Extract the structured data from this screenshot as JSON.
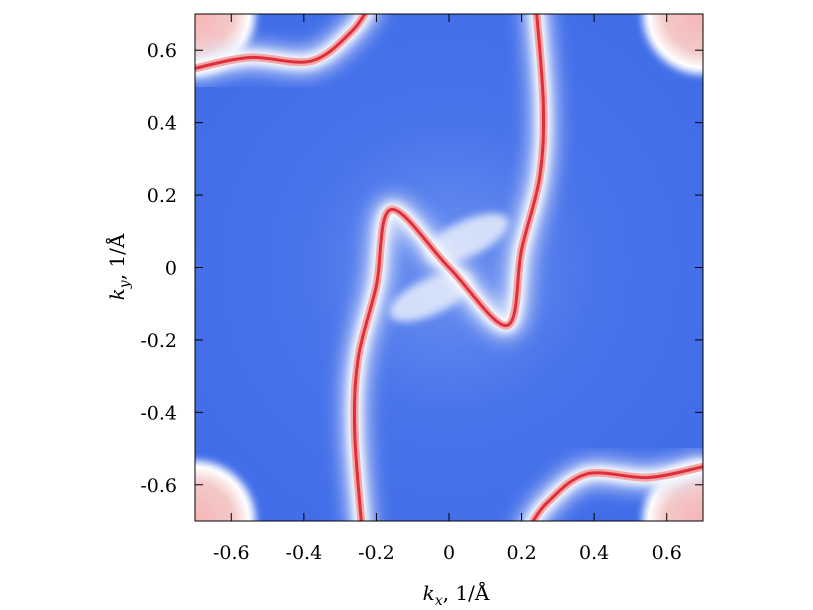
{
  "chart_data": {
    "type": "heatmap",
    "title": "",
    "xlabel": {
      "var": "k",
      "sub": "x",
      "unit": ", 1/Å"
    },
    "ylabel": {
      "var": "k",
      "sub": "y",
      "unit": ", 1/Å"
    },
    "xlim": [
      -0.7,
      0.7
    ],
    "ylim": [
      -0.7,
      0.7
    ],
    "xticks": [
      -0.6,
      -0.4,
      -0.2,
      0,
      0.2,
      0.4,
      0.6
    ],
    "yticks": [
      -0.6,
      -0.4,
      -0.2,
      0,
      0.2,
      0.4,
      0.6
    ],
    "xtick_labels": [
      "-0.6",
      "-0.4",
      "-0.2",
      "0",
      "0.2",
      "0.4",
      "0.6"
    ],
    "ytick_labels": [
      "-0.6",
      "-0.4",
      "-0.2",
      "0",
      "0.2",
      "0.4",
      "0.6"
    ],
    "grid": false,
    "colors": {
      "background": "#3d6ae8",
      "high": "#e0303a",
      "mid": "#ffffff"
    },
    "features": [
      {
        "name": "central-band",
        "points": [
          [
            -0.24,
            -0.72
          ],
          [
            -0.26,
            -0.45
          ],
          [
            -0.25,
            -0.25
          ],
          [
            -0.2,
            -0.05
          ],
          [
            -0.16,
            0.16
          ],
          [
            0.0,
            0.0
          ],
          [
            0.16,
            -0.16
          ],
          [
            0.2,
            0.05
          ],
          [
            0.25,
            0.25
          ],
          [
            0.26,
            0.45
          ],
          [
            0.24,
            0.72
          ]
        ]
      },
      {
        "name": "arc-top-left",
        "points": [
          [
            -0.7,
            0.55
          ],
          [
            -0.55,
            0.58
          ],
          [
            -0.38,
            0.57
          ],
          [
            -0.27,
            0.65
          ],
          [
            -0.22,
            0.72
          ]
        ]
      },
      {
        "name": "arc-bottom-right",
        "points": [
          [
            0.22,
            -0.72
          ],
          [
            0.27,
            -0.65
          ],
          [
            0.38,
            -0.57
          ],
          [
            0.55,
            -0.58
          ],
          [
            0.7,
            -0.55
          ]
        ]
      }
    ],
    "corner_pockets": [
      [
        -0.7,
        0.7
      ],
      [
        0.7,
        0.7
      ],
      [
        -0.7,
        -0.7
      ],
      [
        0.7,
        -0.7
      ]
    ]
  }
}
